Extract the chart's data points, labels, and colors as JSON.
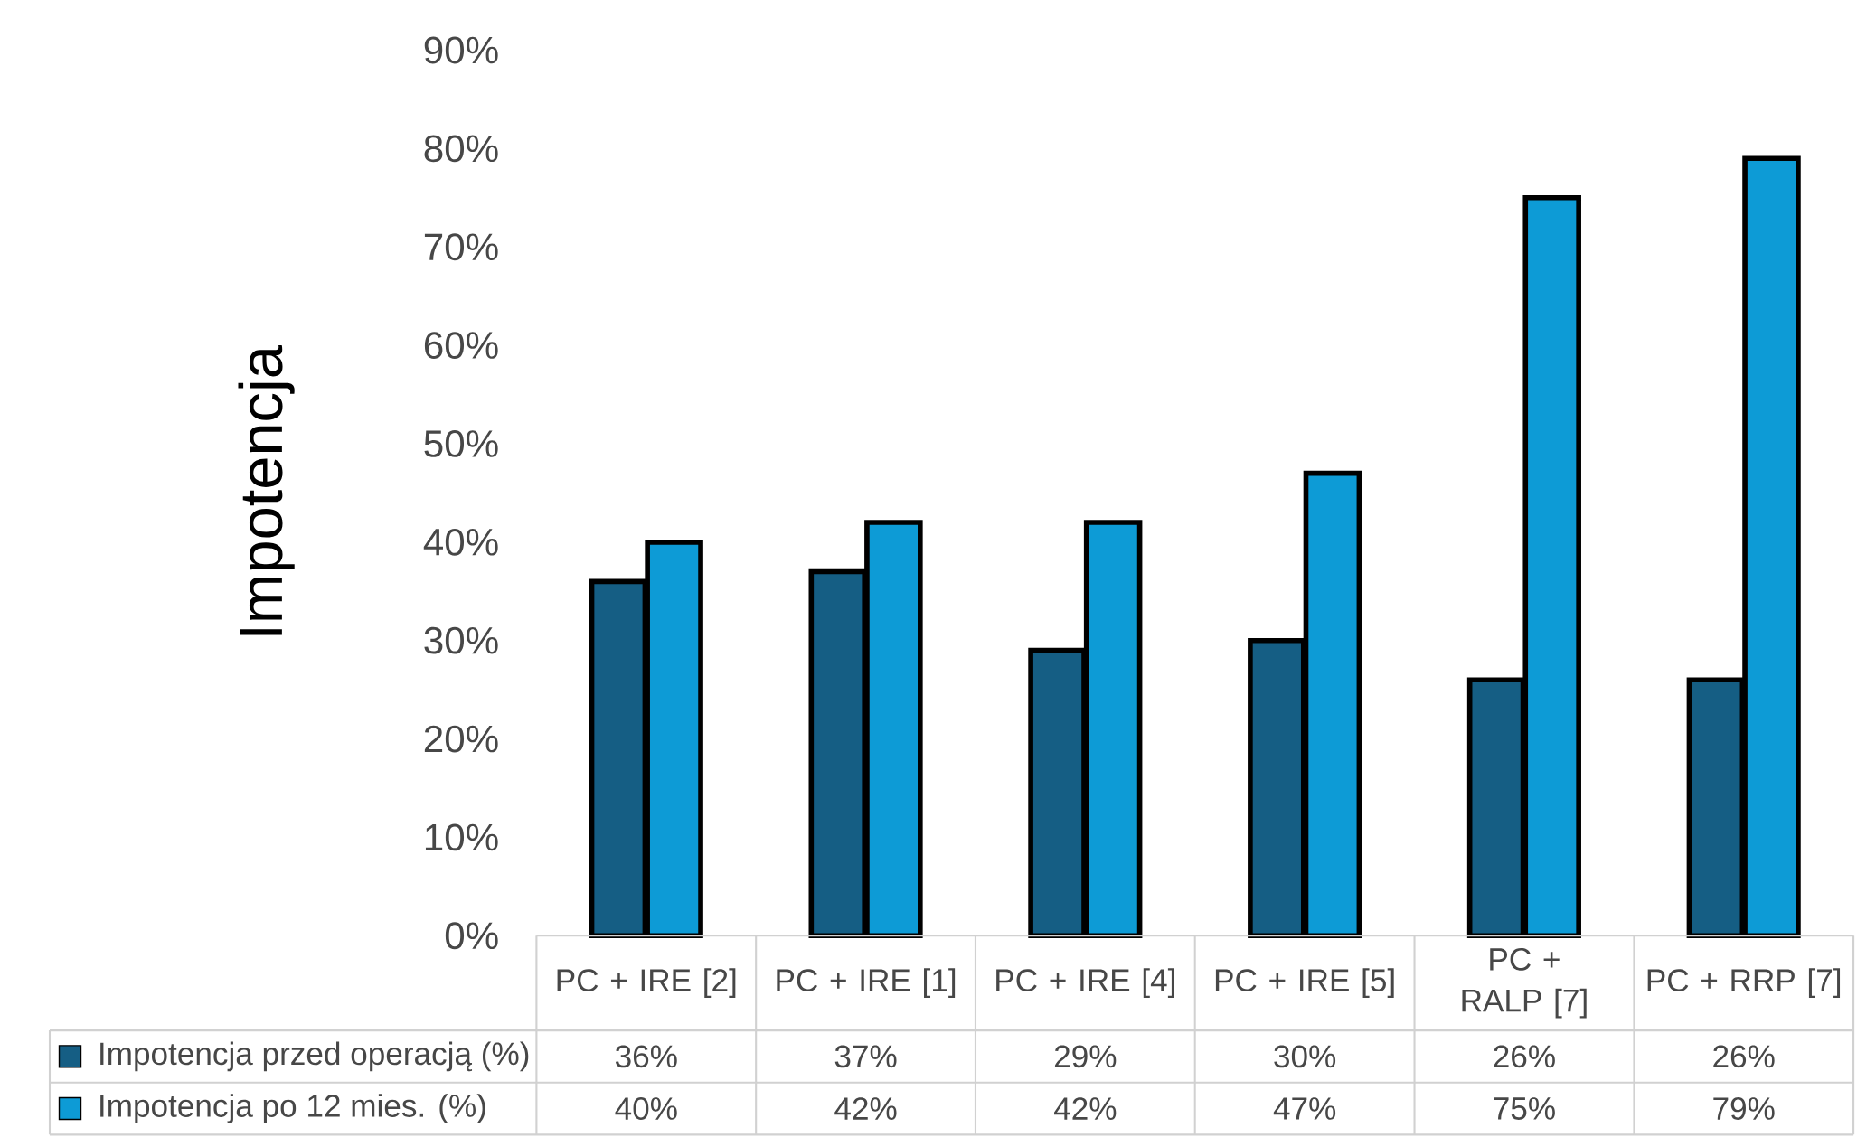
{
  "chart_data": {
    "type": "bar",
    "ylabel": "Impotencja",
    "categories": [
      "PC + IRE [2]",
      "PC + IRE [1]",
      "PC + IRE [4]",
      "PC + IRE [5]",
      "PC + RALP [7]",
      "PC + RRP [7]"
    ],
    "series": [
      {
        "name": "Impotencja przed operacją (%)",
        "color": "#155e84",
        "values": [
          36,
          37,
          29,
          30,
          26,
          26
        ],
        "value_labels": [
          "36%",
          "37%",
          "29%",
          "30%",
          "26%",
          "26%"
        ]
      },
      {
        "name": "Impotencja po 12 mies. (%)",
        "color": "#0d9bd6",
        "values": [
          40,
          42,
          42,
          47,
          75,
          79
        ],
        "value_labels": [
          "40%",
          "42%",
          "42%",
          "47%",
          "75%",
          "79%"
        ]
      }
    ],
    "legend": "bottom left",
    "ylim": [
      0,
      90
    ],
    "yticks": [
      {
        "value": 0,
        "label": "0%"
      },
      {
        "value": 10,
        "label": "10%"
      },
      {
        "value": 20,
        "label": "20%"
      },
      {
        "value": 30,
        "label": "30%"
      },
      {
        "value": 40,
        "label": "40%"
      },
      {
        "value": 50,
        "label": "50%"
      },
      {
        "value": 60,
        "label": "60%"
      },
      {
        "value": 70,
        "label": "70%"
      },
      {
        "value": 80,
        "label": "80%"
      },
      {
        "value": 90,
        "label": "90%"
      }
    ]
  }
}
